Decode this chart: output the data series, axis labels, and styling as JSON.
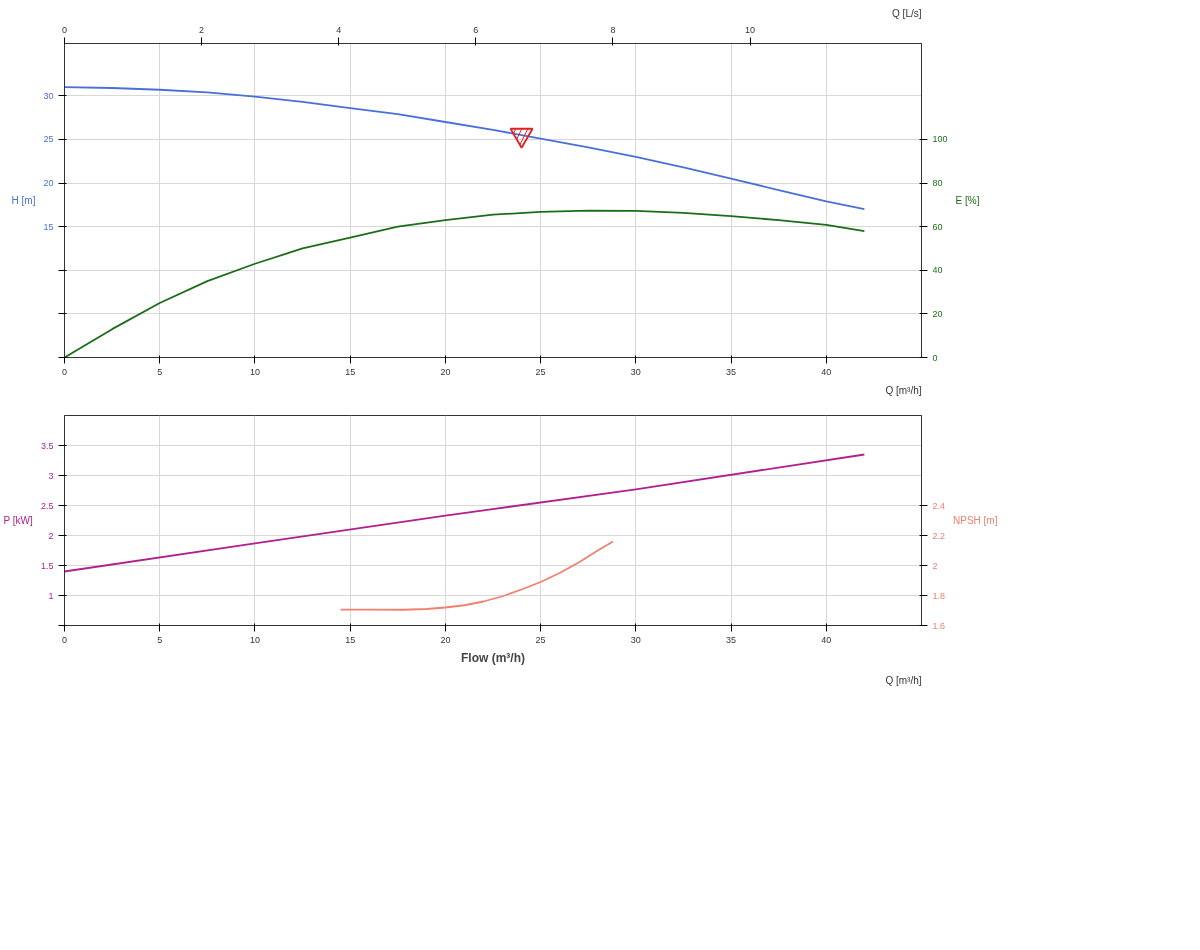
{
  "chart_data": [
    {
      "type": "line",
      "xlabel": "Q [m³/h]",
      "ylabel": "H [m]",
      "y2label": "E [%]",
      "x2label": "Q [L/s]",
      "xlim": [
        0,
        45
      ],
      "xticks": [
        0,
        5,
        10,
        15,
        20,
        25,
        30,
        35,
        40
      ],
      "x2lim": [
        0,
        12.5
      ],
      "x2ticks": [
        0,
        2,
        4,
        6,
        8,
        10
      ],
      "ylim": [
        0,
        36
      ],
      "yticks": [
        {
          "value": 0,
          "label": null
        },
        {
          "value": 5,
          "label": null
        },
        {
          "value": 10,
          "label": null
        },
        15,
        20,
        25,
        30
      ],
      "y2lim": [
        0,
        144
      ],
      "y2ticks": [
        0,
        20,
        40,
        60,
        80,
        100
      ],
      "grid": true,
      "line_style": "solid",
      "marker": "none",
      "series": [
        {
          "color": "#4a6fd8",
          "x": [
            0,
            2.5,
            5,
            7.5,
            10,
            12.5,
            15,
            17.5,
            20,
            22.5,
            25,
            27.5,
            30,
            32.5,
            35,
            37.5,
            40,
            42
          ],
          "values": [
            31.0,
            30.9,
            30.7,
            30.4,
            29.9,
            29.3,
            28.6,
            27.9,
            27.0,
            26.1,
            25.1,
            24.1,
            23.0,
            21.8,
            20.5,
            19.2,
            17.9,
            17.0
          ]
        },
        {
          "color": "#1a6e1a",
          "axis": "y2",
          "x": [
            0,
            2.5,
            5,
            7.5,
            10,
            12.5,
            15,
            17.5,
            20,
            22.5,
            25,
            27.5,
            30,
            32.5,
            35,
            37.5,
            40,
            42
          ],
          "values": [
            0,
            13,
            25,
            35,
            43,
            50,
            55,
            60,
            63,
            65.5,
            66.8,
            67.4,
            67.2,
            66.3,
            64.8,
            63,
            60.8,
            58
          ]
        },
        {
          "type": "scatter",
          "marker": "triangle",
          "color": "#e02020",
          "x": [
            24
          ],
          "values": [
            25.5
          ]
        }
      ]
    },
    {
      "type": "line",
      "xlabel": "Flow (m³/h)",
      "ylabel": "P [kW]",
      "y2label": "NPSH [m]",
      "annotations": [
        "Q [m³/h]"
      ],
      "xlim": [
        0,
        45
      ],
      "xticks": [
        0,
        5,
        10,
        15,
        20,
        25,
        30,
        35,
        40
      ],
      "ylim": [
        0.5,
        4.0
      ],
      "yticks": [
        {
          "value": 0.5,
          "label": null
        },
        1,
        1.5,
        2,
        2.5,
        3,
        3.5
      ],
      "y2lim": [
        1.6,
        3.0
      ],
      "y2ticks": [
        1.6,
        1.8,
        2,
        2.2,
        2.4
      ],
      "grid": true,
      "line_style": "solid",
      "marker": "none",
      "series": [
        {
          "color": "#b0208f",
          "x": [
            0,
            10,
            20,
            30,
            42
          ],
          "values": [
            1.4,
            1.87,
            2.33,
            2.77,
            3.35
          ]
        },
        {
          "color": "#f08070",
          "axis": "y2",
          "x": [
            14.5,
            16,
            17.8,
            19,
            20,
            21,
            22,
            23,
            24,
            25,
            26,
            27,
            28,
            28.8
          ],
          "values": [
            1.706,
            1.706,
            1.705,
            1.71,
            1.72,
            1.735,
            1.76,
            1.795,
            1.84,
            1.89,
            1.95,
            2.02,
            2.1,
            2.16
          ]
        }
      ]
    }
  ]
}
